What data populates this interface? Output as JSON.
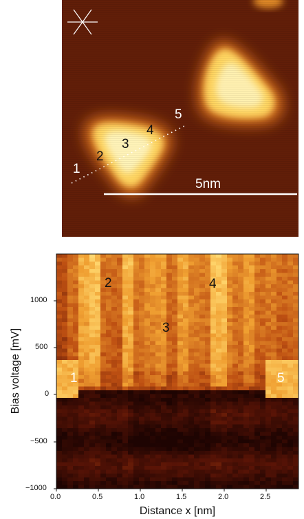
{
  "top_image": {
    "scale_bar_label": "5nm",
    "point_labels": [
      "1",
      "2",
      "3",
      "4",
      "5"
    ],
    "compass_icon": "asterisk-compass-icon",
    "colors": {
      "dark": "#5a1a08",
      "bright": "#fff2b0"
    }
  },
  "bottom_plot": {
    "region_labels": [
      "1",
      "2",
      "3",
      "4",
      "5"
    ],
    "ylabel": "Bias voltage [mV]",
    "xlabel": "Distance x [nm]",
    "y_ticks": [
      "1000",
      "500",
      "0",
      "−500",
      "−1000"
    ],
    "x_ticks": [
      "0.0",
      "0.5",
      "1.0",
      "1.5",
      "2.0",
      "2.5"
    ]
  }
}
